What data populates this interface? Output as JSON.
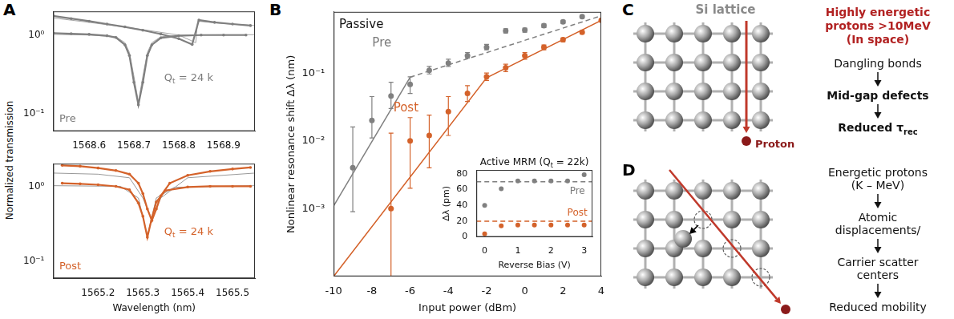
{
  "chart_data": [
    {
      "type": "line",
      "log": "y",
      "grid": false,
      "xlim": [
        1568.52,
        1568.97
      ],
      "xticks": [
        1568.6,
        1568.7,
        1568.8,
        1568.9
      ],
      "ylim": [
        0.06,
        2
      ],
      "yticks": [
        {
          "value": 0.1,
          "label": "10⁻¹"
        },
        {
          "value": 1,
          "label": "10⁰"
        }
      ],
      "annotations": [
        {
          "text": "Q",
          "sub": "t",
          "after": " = 24 k"
        },
        "Pre"
      ],
      "series": [
        {
          "color": "#7f7f7f",
          "marker": "circle",
          "line_style": "solid",
          "x": [
            1568.52,
            1568.56,
            1568.6,
            1568.64,
            1568.68,
            1568.72,
            1568.76,
            1568.8,
            1568.83,
            1568.845,
            1568.88,
            1568.92,
            1568.96
          ],
          "values": [
            1.75,
            1.62,
            1.5,
            1.38,
            1.27,
            1.15,
            1.03,
            0.9,
            0.76,
            1.55,
            1.45,
            1.38,
            1.32
          ]
        },
        {
          "color": "#7f7f7f",
          "marker": "circle",
          "line_style": "solid",
          "x": [
            1568.52,
            1568.56,
            1568.6,
            1568.64,
            1568.66,
            1568.68,
            1568.69,
            1568.7,
            1568.71,
            1568.72,
            1568.73,
            1568.74,
            1568.76,
            1568.8,
            1568.85,
            1568.9,
            1568.95
          ],
          "values": [
            1.06,
            1.04,
            1.02,
            0.98,
            0.93,
            0.75,
            0.55,
            0.25,
            0.13,
            0.25,
            0.55,
            0.75,
            0.92,
            0.98,
            1.0,
            1.0,
            1.0
          ]
        },
        {
          "color": "#a6a6a6",
          "marker": "none",
          "line_style": "solid",
          "x": [
            1568.52,
            1568.6,
            1568.7,
            1568.8,
            1568.838,
            1568.842,
            1568.9,
            1568.97
          ],
          "values": [
            1.65,
            1.45,
            1.22,
            1.0,
            0.8,
            1.5,
            1.4,
            1.32
          ]
        },
        {
          "color": "#a6a6a6",
          "marker": "none",
          "line_style": "solid",
          "x": [
            1568.52,
            1568.6,
            1568.66,
            1568.68,
            1568.69,
            1568.7,
            1568.71,
            1568.72,
            1568.73,
            1568.74,
            1568.76,
            1568.8,
            1568.9,
            1568.97
          ],
          "values": [
            1.02,
            1.0,
            0.95,
            0.8,
            0.6,
            0.3,
            0.14,
            0.3,
            0.6,
            0.8,
            0.95,
            1.0,
            1.01,
            1.01
          ]
        }
      ]
    },
    {
      "type": "line",
      "log": "y",
      "grid": false,
      "xlabel": "Wavelength (nm)",
      "xlim": [
        1565.1,
        1565.55
      ],
      "xticks": [
        1565.2,
        1565.3,
        1565.4,
        1565.5
      ],
      "ylim": [
        0.06,
        2
      ],
      "yticks": [
        {
          "value": 0.1,
          "label": "10⁻¹"
        },
        {
          "value": 1,
          "label": "10⁰"
        }
      ],
      "annotations": [
        {
          "text": "Q",
          "sub": "t",
          "after": " = 24 k"
        },
        "Post"
      ],
      "series": [
        {
          "color": "#d4622a",
          "marker": "circle",
          "line_style": "solid",
          "x": [
            1565.12,
            1565.16,
            1565.2,
            1565.24,
            1565.27,
            1565.29,
            1565.3,
            1565.31,
            1565.32,
            1565.33,
            1565.34,
            1565.36,
            1565.4,
            1565.45,
            1565.5,
            1565.54
          ],
          "values": [
            1.9,
            1.85,
            1.75,
            1.62,
            1.45,
            1.1,
            0.8,
            0.5,
            0.35,
            0.5,
            0.75,
            1.1,
            1.4,
            1.58,
            1.7,
            1.78
          ]
        },
        {
          "color": "#d4622a",
          "marker": "circle",
          "line_style": "solid",
          "x": [
            1565.12,
            1565.16,
            1565.2,
            1565.24,
            1565.27,
            1565.29,
            1565.3,
            1565.31,
            1565.32,
            1565.33,
            1565.35,
            1565.4,
            1565.45,
            1565.5,
            1565.54
          ],
          "values": [
            1.1,
            1.08,
            1.05,
            1.0,
            0.9,
            0.6,
            0.4,
            0.21,
            0.38,
            0.62,
            0.88,
            0.98,
            1.0,
            1.0,
            1.0
          ]
        },
        {
          "color": "#999999",
          "marker": "none",
          "line_style": "solid",
          "x": [
            1565.1,
            1565.2,
            1565.27,
            1565.3,
            1565.32,
            1565.34,
            1565.4,
            1565.55
          ],
          "values": [
            1.5,
            1.45,
            1.3,
            0.7,
            0.36,
            0.7,
            1.3,
            1.5
          ]
        },
        {
          "color": "#999999",
          "marker": "none",
          "line_style": "solid",
          "x": [
            1565.1,
            1565.25,
            1565.29,
            1565.31,
            1565.33,
            1565.37,
            1565.55
          ],
          "values": [
            1.02,
            1.0,
            0.7,
            0.22,
            0.7,
            0.97,
            1.02
          ]
        }
      ]
    },
    {
      "type": "scatter",
      "log": "y",
      "grid": false,
      "title": "Passive",
      "xlabel": "Input power (dBm)",
      "ylabel": "Nonlinear resonance shift Δλ (nm)",
      "xlim": [
        -10,
        4
      ],
      "xticks": [
        -10,
        -8,
        -6,
        -4,
        -2,
        0,
        2,
        4
      ],
      "ylim": [
        0.0001,
        0.8
      ],
      "yticks": [
        {
          "value": 0.001,
          "label": "10⁻³"
        },
        {
          "value": 0.01,
          "label": "10⁻²"
        },
        {
          "value": 0.1,
          "label": "10⁻¹"
        }
      ],
      "annotations": [
        "Pre",
        "Post"
      ],
      "series": [
        {
          "color": "#808080",
          "marker": "circle",
          "line_style": "none",
          "x": [
            -9,
            -8,
            -7,
            -6,
            -5,
            -4,
            -3,
            -2,
            -1,
            0,
            1,
            2,
            3
          ],
          "values": [
            0.004,
            0.02,
            0.046,
            0.068,
            0.11,
            0.14,
            0.18,
            0.24,
            0.42,
            0.43,
            0.5,
            0.57,
            0.68
          ],
          "error_low": [
            0.0009,
            0.011,
            0.03,
            0.05,
            0.097,
            0.125,
            0.165,
            0.22,
            0.39,
            0.4,
            0.47,
            0.54,
            0.65
          ],
          "error_high": [
            0.016,
            0.045,
            0.073,
            0.088,
            0.125,
            0.16,
            0.2,
            0.265,
            0.45,
            0.46,
            0.53,
            0.6,
            0.71
          ]
        },
        {
          "color": "#d4622a",
          "marker": "circle",
          "line_style": "none",
          "x": [
            -7,
            -6,
            -5,
            -4,
            -3,
            -2,
            -1,
            0,
            1,
            2,
            3,
            4
          ],
          "values": [
            0.001,
            0.01,
            0.012,
            0.027,
            0.05,
            0.088,
            0.12,
            0.18,
            0.24,
            0.31,
            0.4,
            0.6
          ],
          "error_low": [
            5e-05,
            0.002,
            0.004,
            0.012,
            0.038,
            0.078,
            0.105,
            0.16,
            0.22,
            0.29,
            0.38,
            0.58
          ],
          "error_high": [
            0.013,
            0.022,
            0.024,
            0.045,
            0.065,
            0.1,
            0.135,
            0.2,
            0.26,
            0.33,
            0.42,
            0.63
          ]
        },
        {
          "color": "#808080",
          "marker": "none",
          "line_style": "solid",
          "x": [
            -10,
            -6
          ],
          "values": [
            0.0011,
            0.087
          ]
        },
        {
          "color": "#808080",
          "marker": "none",
          "line_style": "dashed",
          "x": [
            -6,
            4
          ],
          "values": [
            0.087,
            0.7
          ]
        },
        {
          "color": "#d4622a",
          "marker": "none",
          "line_style": "solid",
          "x": [
            -10,
            -2,
            4
          ],
          "values": [
            0.0001,
            0.085,
            0.6
          ]
        }
      ]
    },
    {
      "type": "scatter",
      "grid": false,
      "title": {
        "text": "Active MRM (Q",
        "sub": "t",
        "after": " = 22k)"
      },
      "xlabel": "Reverse Bias (V)",
      "ylabel": "Δλ (pm)",
      "xlim": [
        -0.25,
        3.25
      ],
      "xticks": [
        0,
        1,
        2,
        3
      ],
      "ylim": [
        0,
        85
      ],
      "yticks": [
        0,
        20,
        40,
        60,
        80
      ],
      "annotations": [
        "Pre",
        "Post"
      ],
      "series": [
        {
          "color": "#808080",
          "marker": "circle",
          "line_style": "none",
          "x": [
            0,
            0.5,
            1,
            1.5,
            2,
            2.5,
            3
          ],
          "values": [
            40,
            61,
            71,
            71,
            71,
            71,
            79
          ]
        },
        {
          "color": "#d4622a",
          "marker": "circle",
          "line_style": "none",
          "x": [
            0,
            0.5,
            1,
            1.5,
            2,
            2.5,
            3
          ],
          "values": [
            4,
            14,
            15,
            15,
            15,
            15,
            15
          ]
        },
        {
          "color": "#808080",
          "marker": "none",
          "line_style": "dashed",
          "x": [
            -0.25,
            3.25
          ],
          "values": [
            70,
            70
          ]
        },
        {
          "color": "#d4622a",
          "marker": "none",
          "line_style": "dashed",
          "x": [
            -0.25,
            3.25
          ],
          "values": [
            20,
            20
          ]
        }
      ]
    }
  ],
  "panel_letters": [
    "A",
    "B",
    "C",
    "D"
  ],
  "panel_a": {
    "ylabel": "Normalized transmission"
  },
  "diagram_c": {
    "lattice_label": "Si lattice",
    "particle_label": "Proton",
    "heading": [
      "Highly energetic",
      "protons >10MeV",
      "(In space)"
    ],
    "steps": [
      [
        "Dangling bonds"
      ],
      [
        "Mid-gap defects"
      ],
      [
        {
          "text": "Reduced τ",
          "sub": "rec"
        }
      ]
    ]
  },
  "diagram_d": {
    "steps": [
      [
        "Energetic protons",
        "(K – MeV)"
      ],
      [
        "Atomic",
        "displacements/"
      ],
      [
        "Carrier scatter",
        "centers"
      ],
      [
        "Reduced mobility"
      ]
    ]
  }
}
